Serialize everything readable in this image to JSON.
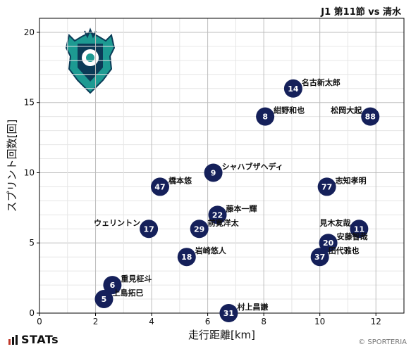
{
  "header": {
    "match": "J1 第11節 vs 清水"
  },
  "brand": {
    "stats": "STATs",
    "copyright": "© SPORTERIA"
  },
  "colors": {
    "marker": "#15205a",
    "marker_text": "#ffffff",
    "grid": "#d8d8d8",
    "axis": "#000000"
  },
  "chart_data": {
    "type": "scatter",
    "title": "",
    "xlabel": "走行距離[km]",
    "ylabel": "スプリント回数[回]",
    "xlim": [
      0,
      13
    ],
    "ylim": [
      0,
      21
    ],
    "x_ticks": [
      0,
      2,
      4,
      6,
      8,
      10,
      12
    ],
    "y_ticks": [
      0,
      5,
      10,
      15,
      20
    ],
    "grid": true,
    "points": [
      {
        "number": "14",
        "name": "名古新太郎",
        "x": 9.05,
        "y": 16,
        "label_pos": "right"
      },
      {
        "number": "8",
        "name": "紺野和也",
        "x": 8.05,
        "y": 14,
        "label_pos": "right"
      },
      {
        "number": "88",
        "name": "松岡大起",
        "x": 11.8,
        "y": 14,
        "label_pos": "left"
      },
      {
        "number": "9",
        "name": "シャハブザヘディ",
        "x": 6.2,
        "y": 10,
        "label_pos": "right"
      },
      {
        "number": "47",
        "name": "橋本悠",
        "x": 4.3,
        "y": 9,
        "label_pos": "right"
      },
      {
        "number": "77",
        "name": "志知孝明",
        "x": 10.25,
        "y": 9,
        "label_pos": "right"
      },
      {
        "number": "22",
        "name": "藤本一輝",
        "x": 6.35,
        "y": 7,
        "label_pos": "right"
      },
      {
        "number": "29",
        "name": "前寛洋太",
        "x": 5.7,
        "y": 6,
        "label_pos": "right"
      },
      {
        "number": "17",
        "name": "ウェリントン",
        "x": 3.9,
        "y": 6,
        "label_pos": "left"
      },
      {
        "number": "11",
        "name": "見木友哉",
        "x": 11.4,
        "y": 6,
        "label_pos": "left"
      },
      {
        "number": "20",
        "name": "安藤智哉",
        "x": 10.3,
        "y": 5,
        "label_pos": "right"
      },
      {
        "number": "18",
        "name": "岩崎悠人",
        "x": 5.25,
        "y": 4,
        "label_pos": "right"
      },
      {
        "number": "37",
        "name": "田代雅也",
        "x": 10.0,
        "y": 4,
        "label_pos": "right"
      },
      {
        "number": "6",
        "name": "重見柾斗",
        "x": 2.6,
        "y": 2,
        "label_pos": "right"
      },
      {
        "number": "5",
        "name": "上島拓巳",
        "x": 2.3,
        "y": 1,
        "label_pos": "right"
      },
      {
        "number": "31",
        "name": "村上昌謙",
        "x": 6.75,
        "y": 0,
        "label_pos": "right"
      }
    ]
  }
}
